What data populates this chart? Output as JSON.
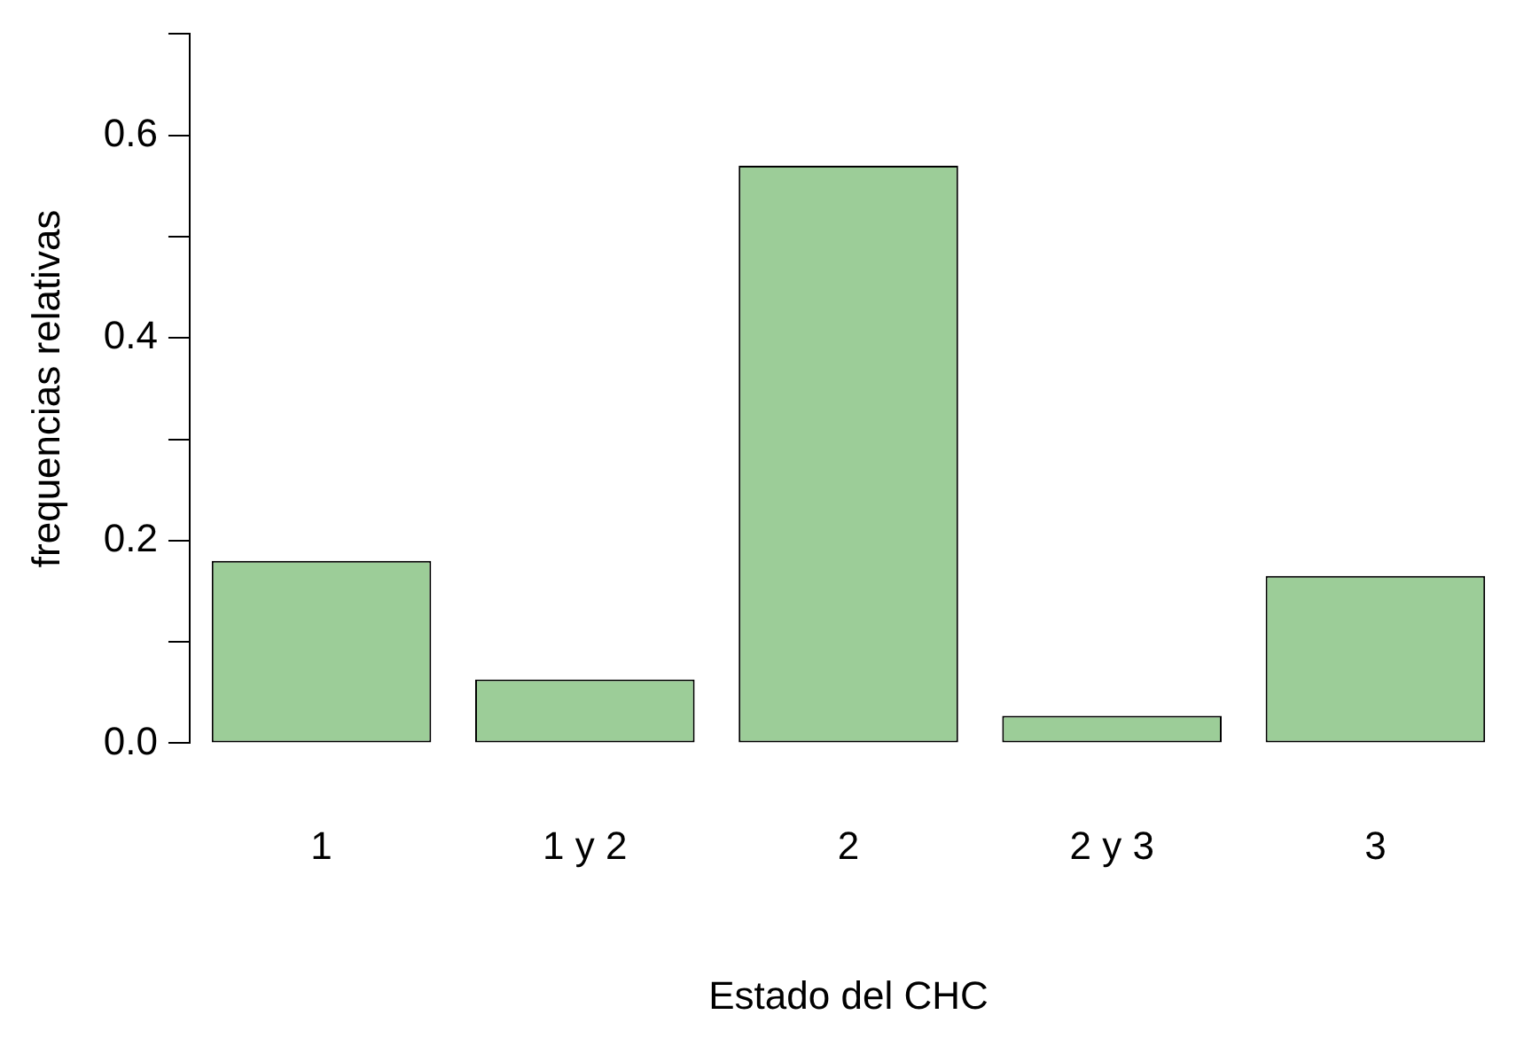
{
  "chart_data": {
    "type": "bar",
    "xlabel": "Estado del CHC",
    "ylabel": "frequencias relativas",
    "categories": [
      "1",
      "1 y 2",
      "2",
      "2 y 3",
      "3"
    ],
    "values": [
      0.18,
      0.063,
      0.57,
      0.027,
      0.165
    ],
    "color": "#9ccd98",
    "ylim": [
      0,
      0.7
    ],
    "yticks": [
      {
        "value": 0,
        "label": "0.0"
      },
      {
        "value": 0.1,
        "label": null
      },
      {
        "value": 0.2,
        "label": "0.2"
      },
      {
        "value": 0.3,
        "label": null
      },
      {
        "value": 0.4,
        "label": "0.4"
      },
      {
        "value": 0.5,
        "label": null
      },
      {
        "value": 0.6,
        "label": "0.6"
      },
      {
        "value": 0.7,
        "label": null
      }
    ],
    "grid": false,
    "legend": false
  }
}
